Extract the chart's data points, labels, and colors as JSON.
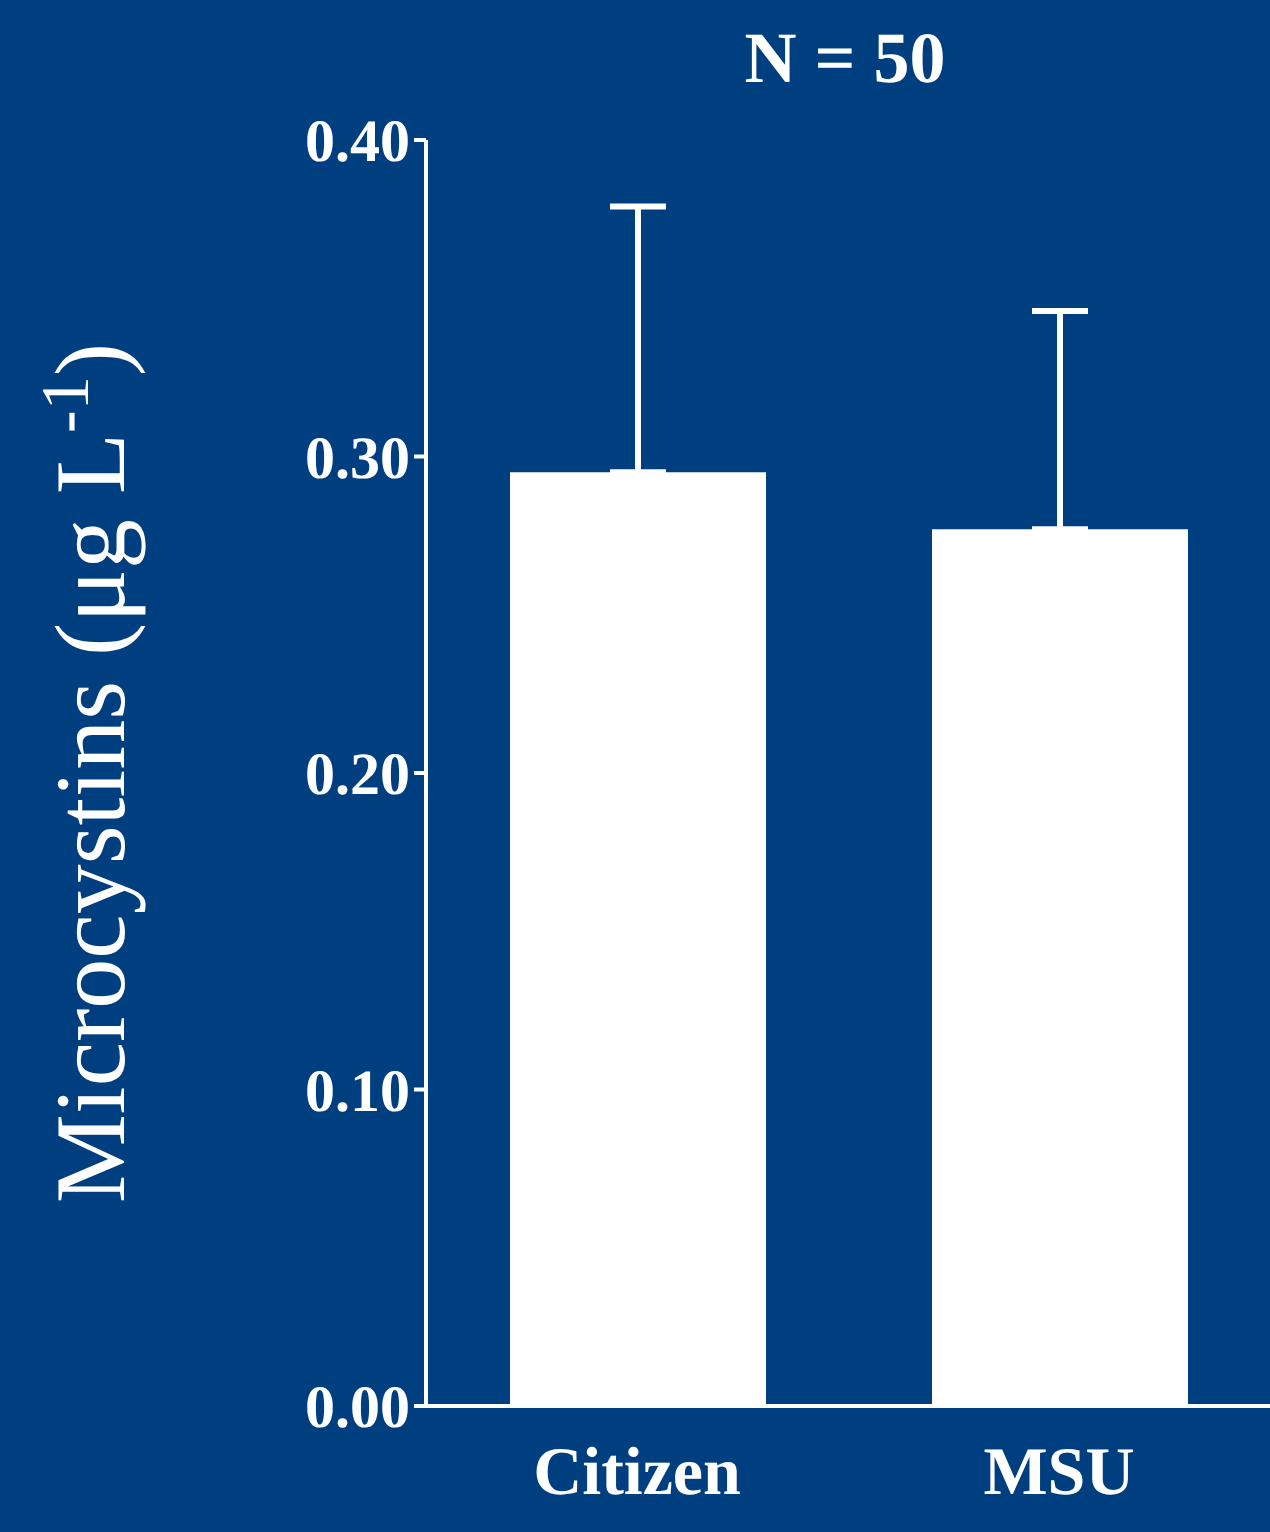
{
  "chart_data": {
    "type": "bar",
    "title": "N = 50",
    "ylabel": "Microcystins (μg L$^{-1}$)",
    "categories": [
      "Citizen",
      "MSU"
    ],
    "values": [
      0.295,
      0.277
    ],
    "color": "#ffffff",
    "errors": [
      [
        0.295,
        0.379
      ],
      [
        0.277,
        0.346
      ]
    ],
    "ylim": [
      0,
      0.4
    ],
    "yticks": [
      {
        "value": 0,
        "label": "0.00"
      },
      {
        "value": 0.1,
        "label": "0.10"
      },
      {
        "value": 0.2,
        "label": "0.20"
      },
      {
        "value": 0.3,
        "label": "0.30"
      },
      {
        "value": 0.4,
        "label": "0.40"
      }
    ],
    "grid": false,
    "legend": false
  }
}
